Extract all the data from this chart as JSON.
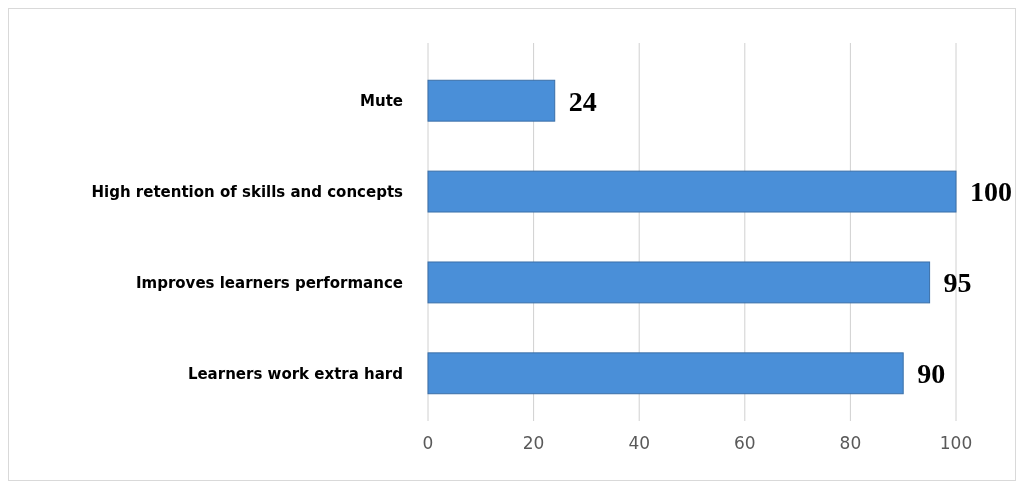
{
  "chart_data": {
    "type": "bar",
    "orientation": "horizontal",
    "categories": [
      "Mute",
      "High retention of skills and concepts",
      "Improves learners performance",
      "Learners work extra hard"
    ],
    "values": [
      24,
      100,
      95,
      90
    ],
    "color": "#4a8fd8",
    "xlim": [
      0,
      100
    ],
    "xticks": [
      0,
      20,
      40,
      60,
      80,
      100
    ],
    "grid": "x",
    "data_labels": true
  }
}
